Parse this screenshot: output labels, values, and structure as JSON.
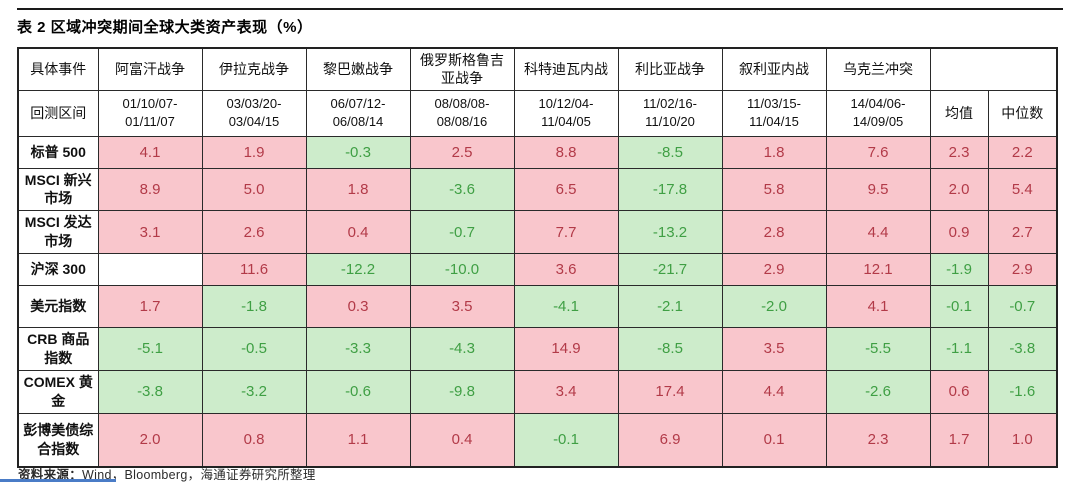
{
  "title": "表 2 区域冲突期间全球大类资产表现（%）",
  "footer": {
    "source_label": "资料来源：",
    "source_text": "Wind，Bloomberg，海通证券研究所整理"
  },
  "colors": {
    "positive_bg": "#f9c6cc",
    "positive_text": "#b23a48",
    "negative_bg": "#cdeccb",
    "negative_text": "#3f9f44",
    "border": "#2a2a2a",
    "accent_line": "#4a7cc7"
  },
  "chart_data": {
    "type": "table",
    "title": "表 2 区域冲突期间全球大类资产表现（%）",
    "corner_header": "具体事件",
    "period_row_header": "回测区间",
    "event_columns": [
      "阿富汗战争",
      "伊拉克战争",
      "黎巴嫩战争",
      "俄罗斯格鲁吉亚战争",
      "科特迪瓦内战",
      "利比亚战争",
      "叙利亚内战",
      "乌克兰冲突"
    ],
    "backtest_periods": [
      "01/10/07-01/11/07",
      "03/03/20-03/04/15",
      "06/07/12-06/08/14",
      "08/08/08-08/08/16",
      "10/12/04-11/04/05",
      "11/02/16-11/10/20",
      "11/03/15-11/04/15",
      "14/04/06-14/09/05"
    ],
    "stat_columns": [
      "均值",
      "中位数"
    ],
    "rows": [
      {
        "label": "标普 500",
        "values": [
          4.1,
          1.9,
          -0.3,
          2.5,
          8.8,
          -8.5,
          1.8,
          7.6
        ],
        "mean": 2.3,
        "median": 2.2
      },
      {
        "label": "MSCI 新兴市场",
        "values": [
          8.9,
          5.0,
          1.8,
          -3.6,
          6.5,
          -17.8,
          5.8,
          9.5
        ],
        "mean": 2.0,
        "median": 5.4
      },
      {
        "label": "MSCI 发达市场",
        "values": [
          3.1,
          2.6,
          0.4,
          -0.7,
          7.7,
          -13.2,
          2.8,
          4.4
        ],
        "mean": 0.9,
        "median": 2.7
      },
      {
        "label": "沪深 300",
        "values": [
          null,
          11.6,
          -12.2,
          -10.0,
          3.6,
          -21.7,
          2.9,
          12.1
        ],
        "mean": -1.9,
        "median": 2.9
      },
      {
        "label": "美元指数",
        "values": [
          1.7,
          -1.8,
          0.3,
          3.5,
          -4.1,
          -2.1,
          -2.0,
          4.1
        ],
        "mean": -0.1,
        "median": -0.7
      },
      {
        "label": "CRB 商品指数",
        "values": [
          -5.1,
          -0.5,
          -3.3,
          -4.3,
          14.9,
          -8.5,
          3.5,
          -5.5
        ],
        "mean": -1.1,
        "median": -3.8
      },
      {
        "label": "COMEX 黄金",
        "values": [
          -3.8,
          -3.2,
          -0.6,
          -9.8,
          3.4,
          17.4,
          4.4,
          -2.6
        ],
        "mean": 0.6,
        "median": -1.6
      },
      {
        "label": "彭博美债综合指数",
        "values": [
          2.0,
          0.8,
          1.1,
          0.4,
          -0.1,
          6.9,
          0.1,
          2.3
        ],
        "mean": 1.7,
        "median": 1.0
      }
    ],
    "color_rule": "positive values: pink cell with red text; negative values: green cell with green text; blank cell: white"
  }
}
